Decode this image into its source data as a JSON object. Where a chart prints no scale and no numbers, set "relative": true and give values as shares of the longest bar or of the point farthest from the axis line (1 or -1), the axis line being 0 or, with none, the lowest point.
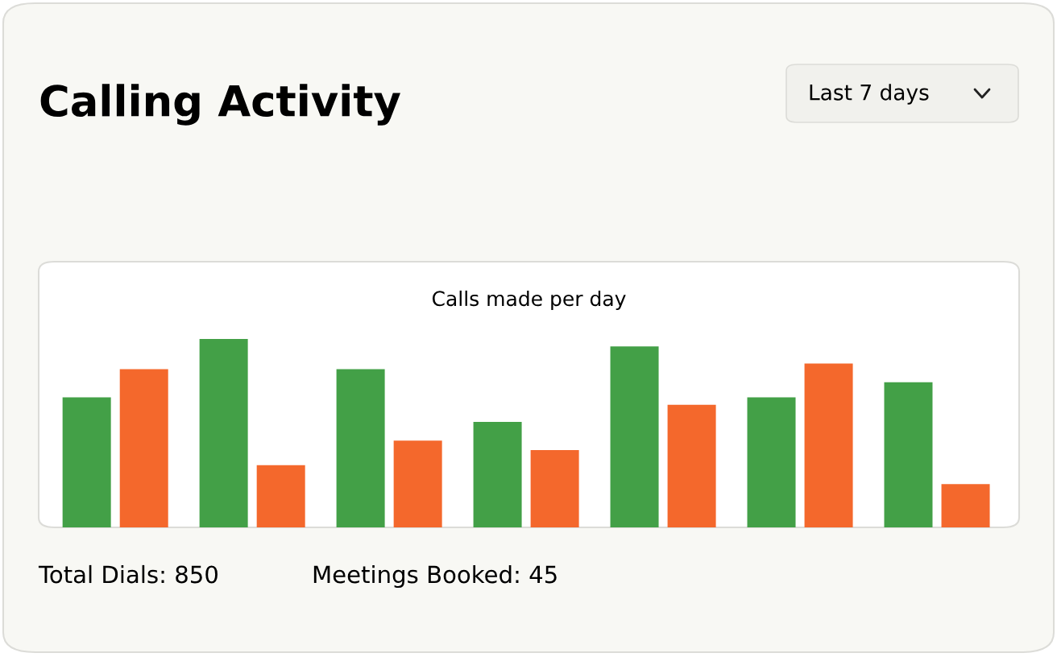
{
  "chart_data": {
    "type": "bar",
    "title": "Calling Activity",
    "subtitle": "Calls made per day",
    "annotations": [
      "Last 7 days",
      "Total Dials: 850",
      "Meetings Booked: 45"
    ],
    "relative": true,
    "categories": [
      null,
      null,
      null,
      null,
      null,
      null,
      null
    ],
    "series": [
      {
        "color": "#43a047",
        "values": [
          0.69,
          1,
          0.84,
          0.56,
          0.96,
          0.69,
          0.77
        ]
      },
      {
        "color": "#f4682c",
        "values": [
          0.84,
          0.33,
          0.46,
          0.41,
          0.65,
          0.87,
          0.23
        ]
      }
    ],
    "grid": false,
    "legend": false
  }
}
